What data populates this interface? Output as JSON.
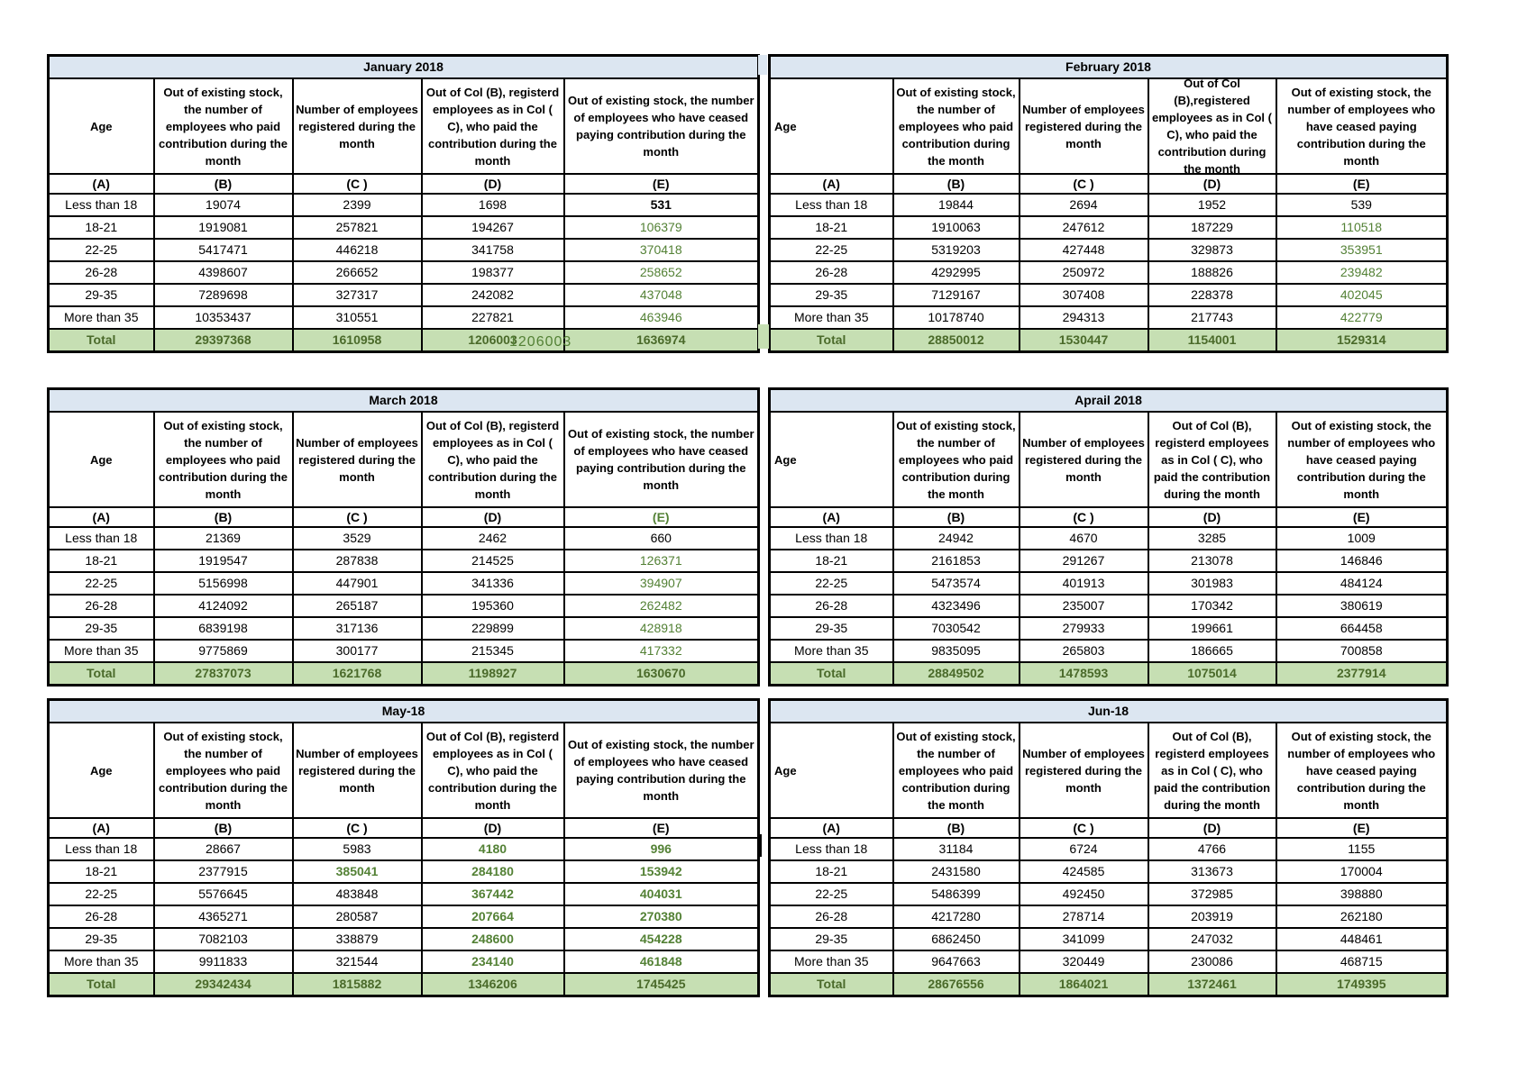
{
  "colors": {
    "title_bg": "#dce6f1",
    "total_bg": "#c6dfb3",
    "green": "#538135",
    "total_green": "#4a6a2a"
  },
  "shared": {
    "age_label": "Age",
    "total_label": "Total",
    "col_letters": [
      "(A)",
      "(B)",
      "(C )",
      "(D)",
      "(E)"
    ],
    "headers": {
      "b": "Out of existing stock, the number of employees who paid contribution during the month",
      "c": "Number of employees registered during the month",
      "d_std": "Out of Col (B), registerd employees as in Col ( C), who paid the contribution during the month",
      "d_feb": "Out of Col (B),registered employees as in Col ( C), who paid the contribution during the month",
      "e": "Out of existing stock, the number of  employees  who have ceased paying contribution during the month"
    }
  },
  "tables": [
    {
      "title": "January 2018",
      "d_variant": "d_std",
      "age_align": "center",
      "e_align": "center",
      "letter_e_green": false,
      "rows": [
        [
          "Less than 18",
          "19074",
          "2399",
          "1698",
          "531"
        ],
        [
          "18-21",
          "1919081",
          "257821",
          "194267",
          "106379"
        ],
        [
          "22-25",
          "5417471",
          "446218",
          "341758",
          "370418"
        ],
        [
          "26-28",
          "4398607",
          "266652",
          "198377",
          "258652"
        ],
        [
          "29-35",
          "7289698",
          "327317",
          "242082",
          "437048"
        ],
        [
          "More than 35",
          "10353437",
          "310551",
          "227821",
          "463946"
        ]
      ],
      "row_styles": [
        [
          "k",
          "k",
          "k",
          "kb"
        ],
        [
          "k",
          "k",
          "k",
          "g"
        ],
        [
          "k",
          "k",
          "k",
          "g"
        ],
        [
          "k",
          "k",
          "k",
          "g"
        ],
        [
          "k",
          "k",
          "k",
          "g"
        ],
        [
          "k",
          "k",
          "k",
          "g"
        ]
      ],
      "total": [
        "29397368",
        "1610958",
        "1206003",
        "1636974"
      ],
      "total_styles": [
        "d",
        "d",
        "d",
        "d"
      ]
    },
    {
      "title": "February 2018",
      "d_variant": "d_feb",
      "age_align": "left",
      "e_align": "right",
      "letter_e_green": false,
      "rows": [
        [
          "Less than 18",
          "19844",
          "2694",
          "1952",
          "539"
        ],
        [
          "18-21",
          "1910063",
          "247612",
          "187229",
          "110518"
        ],
        [
          "22-25",
          "5319203",
          "427448",
          "329873",
          "353951"
        ],
        [
          "26-28",
          "4292995",
          "250972",
          "188826",
          "239482"
        ],
        [
          "29-35",
          "7129167",
          "307408",
          "228378",
          "402045"
        ],
        [
          "More than 35",
          "10178740",
          "294313",
          "217743",
          "422779"
        ]
      ],
      "row_styles": [
        [
          "k",
          "k",
          "k",
          "k"
        ],
        [
          "k",
          "k",
          "k",
          "g"
        ],
        [
          "k",
          "k",
          "k",
          "g"
        ],
        [
          "k",
          "k",
          "k",
          "g"
        ],
        [
          "k",
          "k",
          "k",
          "g"
        ],
        [
          "k",
          "k",
          "k",
          "g"
        ]
      ],
      "total": [
        "28850012",
        "1530447",
        "1154001",
        "1529314"
      ],
      "total_styles": [
        "d",
        "d",
        "d",
        "d"
      ]
    },
    {
      "title": "March 2018",
      "d_variant": "d_std",
      "age_align": "center",
      "e_align": "center",
      "letter_e_green": true,
      "rows": [
        [
          "Less than 18",
          "21369",
          "3529",
          "2462",
          "660"
        ],
        [
          "18-21",
          "1919547",
          "287838",
          "214525",
          "126371"
        ],
        [
          "22-25",
          "5156998",
          "447901",
          "341336",
          "394907"
        ],
        [
          "26-28",
          "4124092",
          "265187",
          "195360",
          "262482"
        ],
        [
          "29-35",
          "6839198",
          "317136",
          "229899",
          "428918"
        ],
        [
          "More than 35",
          "9775869",
          "300177",
          "215345",
          "417332"
        ]
      ],
      "row_styles": [
        [
          "k",
          "k",
          "k",
          "k"
        ],
        [
          "k",
          "k",
          "k",
          "g"
        ],
        [
          "k",
          "k",
          "k",
          "g"
        ],
        [
          "k",
          "k",
          "k",
          "g"
        ],
        [
          "k",
          "k",
          "k",
          "g"
        ],
        [
          "k",
          "k",
          "k",
          "g"
        ]
      ],
      "total": [
        "27837073",
        "1621768",
        "1198927",
        "1630670"
      ],
      "total_styles": [
        "d",
        "d",
        "d",
        "d"
      ]
    },
    {
      "title": "Aprail 2018",
      "d_variant": "d_std",
      "age_align": "left",
      "e_align": "center",
      "letter_e_green": false,
      "rows": [
        [
          "Less than 18",
          "24942",
          "4670",
          "3285",
          "1009"
        ],
        [
          "18-21",
          "2161853",
          "291267",
          "213078",
          "146846"
        ],
        [
          "22-25",
          "5473574",
          "401913",
          "301983",
          "484124"
        ],
        [
          "26-28",
          "4323496",
          "235007",
          "170342",
          "380619"
        ],
        [
          "29-35",
          "7030542",
          "279933",
          "199661",
          "664458"
        ],
        [
          "More than 35",
          "9835095",
          "265803",
          "186665",
          "700858"
        ]
      ],
      "row_styles": [
        [
          "k",
          "k",
          "k",
          "k"
        ],
        [
          "k",
          "k",
          "k",
          "k"
        ],
        [
          "k",
          "k",
          "k",
          "k"
        ],
        [
          "k",
          "k",
          "k",
          "k"
        ],
        [
          "k",
          "k",
          "k",
          "k"
        ],
        [
          "k",
          "k",
          "k",
          "k"
        ]
      ],
      "total": [
        "28849502",
        "1478593",
        "1075014",
        "2377914"
      ],
      "total_styles": [
        "l",
        "l",
        "l",
        "d"
      ]
    },
    {
      "title": "May-18",
      "d_variant": "d_std",
      "age_align": "center",
      "e_align": "center",
      "letter_e_green": false,
      "rows": [
        [
          "Less than 18",
          "28667",
          "5983",
          "4180",
          "996"
        ],
        [
          "18-21",
          "2377915",
          "385041",
          "284180",
          "153942"
        ],
        [
          "22-25",
          "5576645",
          "483848",
          "367442",
          "404031"
        ],
        [
          "26-28",
          "4365271",
          "280587",
          "207664",
          "270380"
        ],
        [
          "29-35",
          "7082103",
          "338879",
          "248600",
          "454228"
        ],
        [
          "More than 35",
          "9911833",
          "321544",
          "234140",
          "461848"
        ]
      ],
      "row_styles": [
        [
          "k",
          "k",
          "gb",
          "gb"
        ],
        [
          "k",
          "gb",
          "gb",
          "gb"
        ],
        [
          "k",
          "k",
          "gb",
          "gb"
        ],
        [
          "k",
          "k",
          "gb",
          "gb"
        ],
        [
          "k",
          "k",
          "gb",
          "gb"
        ],
        [
          "k",
          "k",
          "gb",
          "gb"
        ]
      ],
      "total": [
        "29342434",
        "1815882",
        "1346206",
        "1745425"
      ],
      "total_styles": [
        "d",
        "d",
        "d",
        "d"
      ]
    },
    {
      "title": "Jun-18",
      "d_variant": "d_std",
      "age_align": "left",
      "e_align": "center",
      "letter_e_green": false,
      "rows": [
        [
          "Less than 18",
          "31184",
          "6724",
          "4766",
          "1155"
        ],
        [
          "18-21",
          "2431580",
          "424585",
          "313673",
          "170004"
        ],
        [
          "22-25",
          "5486399",
          "492450",
          "372985",
          "398880"
        ],
        [
          "26-28",
          "4217280",
          "278714",
          "203919",
          "262180"
        ],
        [
          "29-35",
          "6862450",
          "341099",
          "247032",
          "448461"
        ],
        [
          "More than 35",
          "9647663",
          "320449",
          "230086",
          "468715"
        ]
      ],
      "row_styles": [
        [
          "k",
          "k",
          "k",
          "k"
        ],
        [
          "k",
          "k",
          "k",
          "k"
        ],
        [
          "k",
          "k",
          "k",
          "k"
        ],
        [
          "k",
          "k",
          "k",
          "k"
        ],
        [
          "k",
          "k",
          "k",
          "k"
        ],
        [
          "k",
          "k",
          "k",
          "k"
        ]
      ],
      "total": [
        "28676556",
        "1864021",
        "1372461",
        "1749395"
      ],
      "total_styles": [
        "d",
        "d",
        "d",
        "d"
      ]
    }
  ],
  "artifacts": {
    "stray_number": "1206003"
  }
}
